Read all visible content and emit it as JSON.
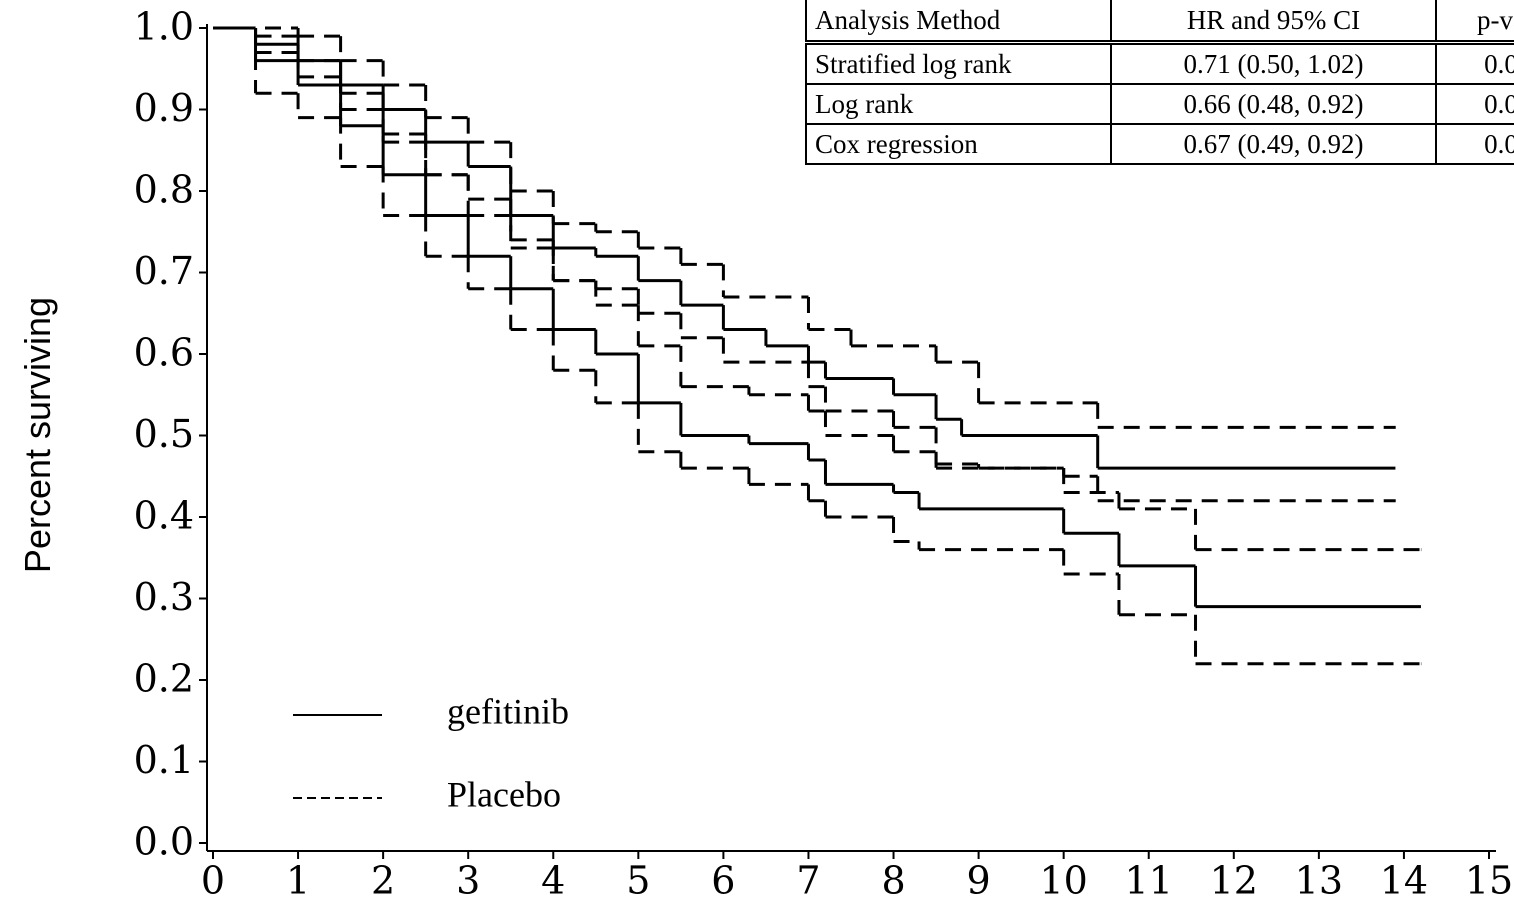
{
  "chart_data": {
    "type": "line",
    "step": true,
    "ylabel": "Percent surviving",
    "xlim": [
      0,
      15
    ],
    "ylim": [
      0,
      1
    ],
    "xticks": [
      0,
      1,
      2,
      3,
      4,
      5,
      6,
      7,
      8,
      9,
      10,
      11,
      12,
      13,
      14,
      15
    ],
    "yticks": [
      {
        "value": 0,
        "label": "0.0"
      },
      0.1,
      0.2,
      0.3,
      0.4,
      0.5,
      0.6,
      0.7,
      0.8,
      0.9,
      {
        "value": 1,
        "label": "1.0"
      }
    ],
    "color": "#000000",
    "legend": [
      {
        "label": "gefitinib",
        "dash": false
      },
      {
        "label": "Placebo",
        "dash": true
      }
    ],
    "series": [
      {
        "dash": false,
        "x": [
          0,
          0.5,
          1,
          1.5,
          2,
          2.5,
          3,
          3.5,
          4,
          4.5,
          5,
          5.5,
          6,
          6.5,
          7,
          7.2,
          8,
          8.5,
          8.8,
          10.4,
          13.9
        ],
        "values": [
          1.0,
          0.98,
          0.96,
          0.93,
          0.9,
          0.86,
          0.83,
          0.77,
          0.73,
          0.72,
          0.69,
          0.66,
          0.63,
          0.61,
          0.59,
          0.57,
          0.55,
          0.52,
          0.5,
          0.46,
          0.46
        ]
      },
      {
        "dash": false,
        "x": [
          0,
          0.5,
          1,
          1.5,
          2,
          2.5,
          3,
          3.5,
          4,
          4.5,
          5,
          5.5,
          6.3,
          7,
          7.2,
          8,
          8.3,
          10,
          10.65,
          11.55,
          14.2
        ],
        "values": [
          1.0,
          0.96,
          0.93,
          0.88,
          0.82,
          0.77,
          0.72,
          0.68,
          0.63,
          0.6,
          0.54,
          0.5,
          0.49,
          0.47,
          0.44,
          0.43,
          0.41,
          0.38,
          0.34,
          0.29,
          0.29
        ]
      },
      {
        "dash": true,
        "x": [
          0,
          1,
          1.5,
          2,
          2.5,
          3,
          3.5,
          4,
          4.5,
          5,
          5.5,
          6,
          7,
          7.5,
          8.5,
          9,
          10.4,
          13.9
        ],
        "values": [
          1.0,
          0.99,
          0.96,
          0.93,
          0.89,
          0.86,
          0.8,
          0.76,
          0.75,
          0.73,
          0.71,
          0.67,
          0.63,
          0.61,
          0.59,
          0.54,
          0.51,
          0.51
        ]
      },
      {
        "dash": true,
        "x": [
          0,
          0.5,
          1,
          1.5,
          2,
          2.5,
          3,
          3.5,
          4,
          4.5,
          5,
          5.5,
          6,
          7,
          7.2,
          8,
          8.5,
          9,
          10,
          10.4,
          13.9
        ],
        "values": [
          1.0,
          0.97,
          0.94,
          0.9,
          0.86,
          0.82,
          0.79,
          0.73,
          0.69,
          0.68,
          0.65,
          0.62,
          0.59,
          0.56,
          0.53,
          0.51,
          0.465,
          0.46,
          0.45,
          0.42,
          0.42
        ]
      },
      {
        "dash": true,
        "x": [
          0,
          0.5,
          1,
          1.5,
          2,
          2.5,
          3,
          3.5,
          4,
          4.5,
          5,
          5.5,
          6.3,
          7,
          7.2,
          8,
          8.5,
          10,
          10.65,
          11.55,
          14.2
        ],
        "values": [
          1.0,
          0.99,
          0.96,
          0.92,
          0.87,
          0.82,
          0.77,
          0.74,
          0.69,
          0.66,
          0.61,
          0.56,
          0.55,
          0.53,
          0.5,
          0.48,
          0.46,
          0.43,
          0.41,
          0.36,
          0.36
        ]
      },
      {
        "dash": true,
        "x": [
          0,
          0.5,
          1,
          1.5,
          2,
          2.5,
          3,
          3.5,
          4,
          4.5,
          5,
          5.5,
          6.3,
          7,
          7.2,
          8,
          8.3,
          10,
          10.65,
          11.55,
          14.2
        ],
        "values": [
          1.0,
          0.92,
          0.89,
          0.83,
          0.77,
          0.72,
          0.68,
          0.63,
          0.58,
          0.54,
          0.48,
          0.46,
          0.44,
          0.42,
          0.4,
          0.37,
          0.36,
          0.33,
          0.28,
          0.22,
          0.22
        ]
      }
    ],
    "table": {
      "header": [
        "Analysis Method",
        "HR and 95% CI",
        "p-va"
      ],
      "rows": [
        [
          "Stratified log rank",
          "0.71 (0.50, 1.02)",
          "0.0"
        ],
        [
          "Log rank",
          "0.66 (0.48, 0.92)",
          "0.0"
        ],
        [
          "Cox regression",
          "0.67 (0.49, 0.92)",
          "0.0"
        ]
      ]
    }
  }
}
